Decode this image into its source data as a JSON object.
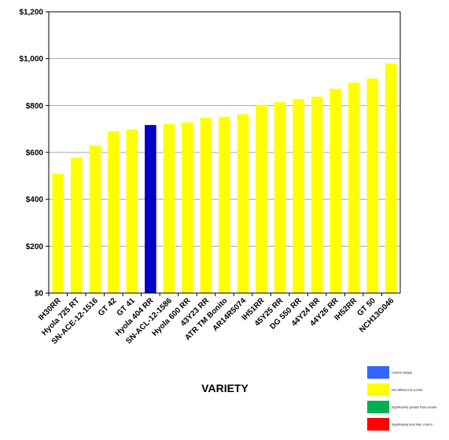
{
  "chart_data": {
    "type": "bar",
    "title": "",
    "xlabel": "VARIETY",
    "ylabel": "",
    "ylim": [
      0,
      1200
    ],
    "yticks": [
      "$0",
      "$200",
      "$400",
      "$600",
      "$800",
      "$1,000",
      "$1,200"
    ],
    "grid": true,
    "legend_position": "bottom-right",
    "categories": [
      "IH30RR",
      "Hyola 725 RT",
      "SN-ACE-12-1516",
      "GT 42",
      "GT 41",
      "Hyola 404 RR",
      "SN-ACL-12-1586",
      "Hyola 600 RR",
      "43Y23 RR",
      "ATR TM Bonito",
      "AR14R5074",
      "IH51RR",
      "45Y25 RR",
      "DG 550 RR",
      "44Y24 RR",
      "44Y26 RR",
      "IH52RR",
      "GT 50",
      "NCH13G046"
    ],
    "values": [
      510,
      578,
      630,
      690,
      698,
      717,
      722,
      728,
      748,
      752,
      763,
      803,
      815,
      827,
      838,
      872,
      898,
      915,
      980
    ],
    "status": [
      "not_different",
      "not_different",
      "not_different",
      "not_different",
      "not_different",
      "control",
      "not_different",
      "not_different",
      "not_different",
      "not_different",
      "not_different",
      "not_different",
      "not_different",
      "not_different",
      "not_different",
      "not_different",
      "not_different",
      "not_different",
      "not_different"
    ],
    "legend": [
      {
        "key": "control",
        "label": "Control Variety",
        "color": "#3366ff"
      },
      {
        "key": "not_different",
        "label": "Not different to control",
        "color": "#ffff00"
      },
      {
        "key": "greater",
        "label": "Significantly greater than control",
        "color": "#00b050"
      },
      {
        "key": "less",
        "label": "Significantly less than control",
        "color": "#ff0000"
      }
    ],
    "bar_colors": {
      "control": "#0000cc",
      "not_different": "#ffff00"
    }
  }
}
